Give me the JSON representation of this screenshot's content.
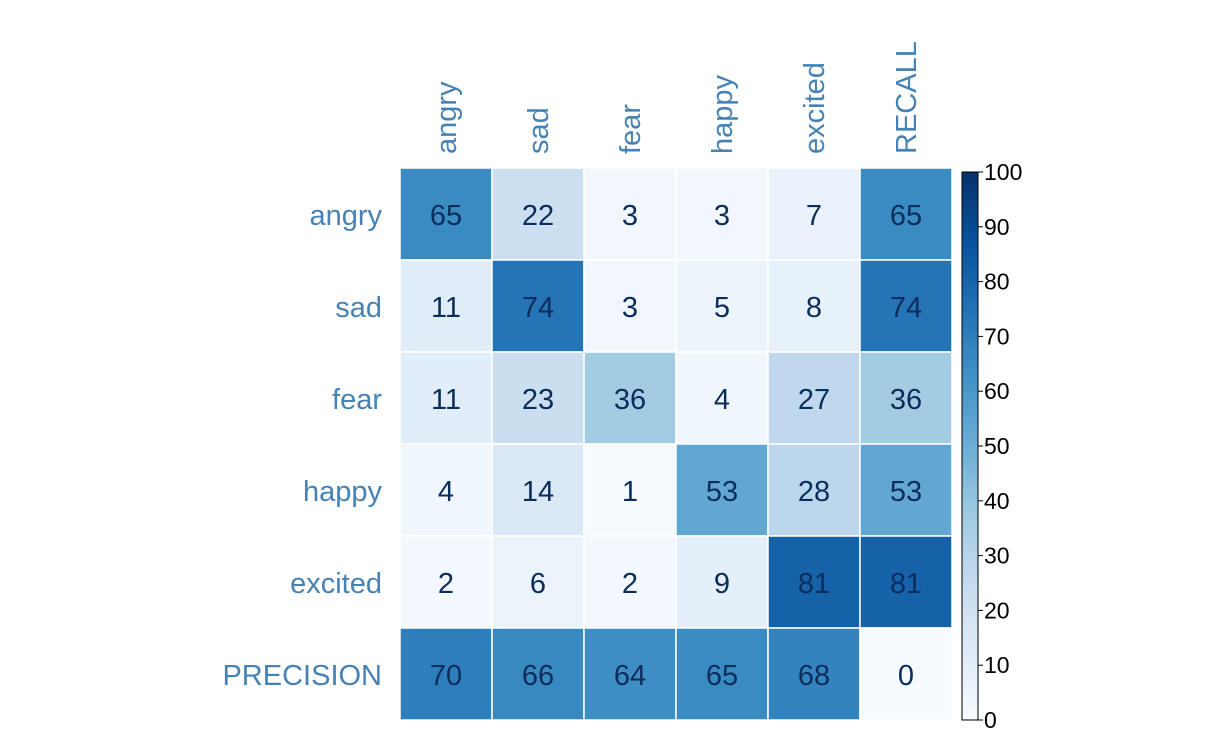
{
  "chart_data": {
    "type": "heatmap",
    "columns": [
      "angry",
      "sad",
      "fear",
      "happy",
      "excited",
      "RECALL"
    ],
    "rows": [
      "angry",
      "sad",
      "fear",
      "happy",
      "excited",
      "PRECISION"
    ],
    "values": [
      [
        65,
        22,
        3,
        3,
        7,
        65
      ],
      [
        11,
        74,
        3,
        5,
        8,
        74
      ],
      [
        11,
        23,
        36,
        4,
        27,
        36
      ],
      [
        4,
        14,
        1,
        53,
        28,
        53
      ],
      [
        2,
        6,
        2,
        9,
        81,
        81
      ],
      [
        70,
        66,
        64,
        65,
        68,
        0
      ]
    ],
    "colorbar": {
      "min": 0,
      "max": 100,
      "ticks": [
        0,
        10,
        20,
        30,
        40,
        50,
        60,
        70,
        80,
        90,
        100
      ],
      "colormap": "Blues"
    }
  },
  "colors": {
    "label": "#4682b4",
    "cell_text": "#0b2d5b",
    "grid_line": "#ffffff"
  }
}
